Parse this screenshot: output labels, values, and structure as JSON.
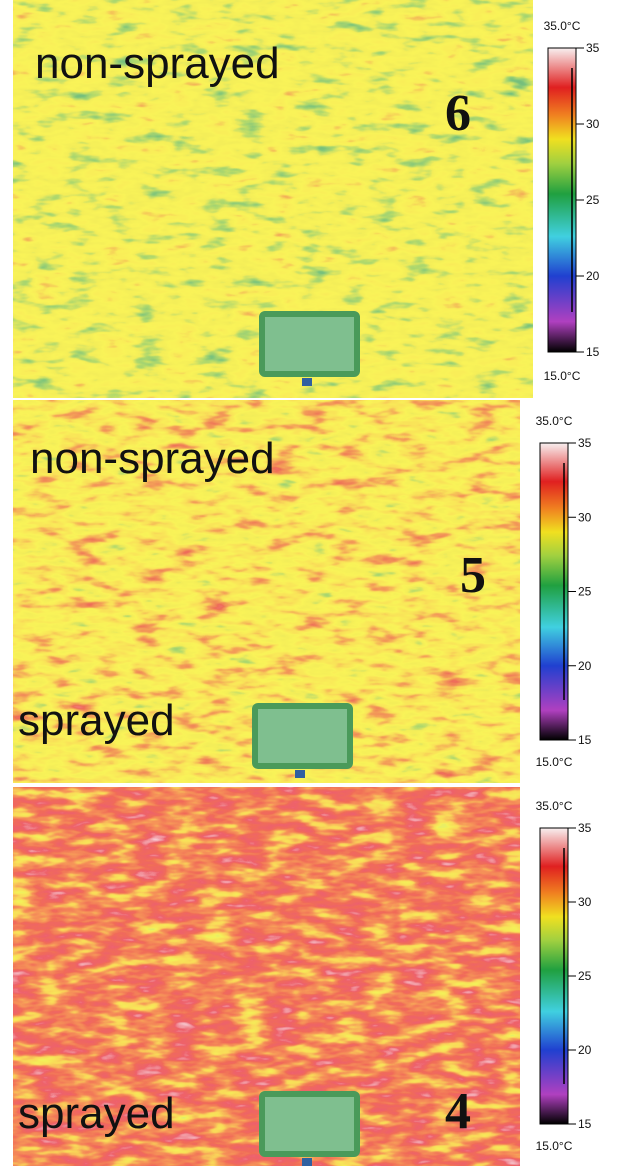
{
  "panels": [
    {
      "labels": [
        "non-sprayed"
      ],
      "number": "6",
      "scale": {
        "max_label": "35.0°C",
        "min_label": "15.0°C",
        "ticks": [
          35,
          30,
          25,
          20,
          15
        ]
      }
    },
    {
      "labels": [
        "non-sprayed",
        "sprayed"
      ],
      "number": "5",
      "scale": {
        "max_label": "35.0°C",
        "min_label": "15.0°C",
        "ticks": [
          35,
          30,
          25,
          20,
          15
        ]
      }
    },
    {
      "labels": [
        "sprayed"
      ],
      "number": "4",
      "scale": {
        "max_label": "35.0°C",
        "min_label": "15.0°C",
        "ticks": [
          35,
          30,
          25,
          20,
          15
        ]
      }
    }
  ]
}
